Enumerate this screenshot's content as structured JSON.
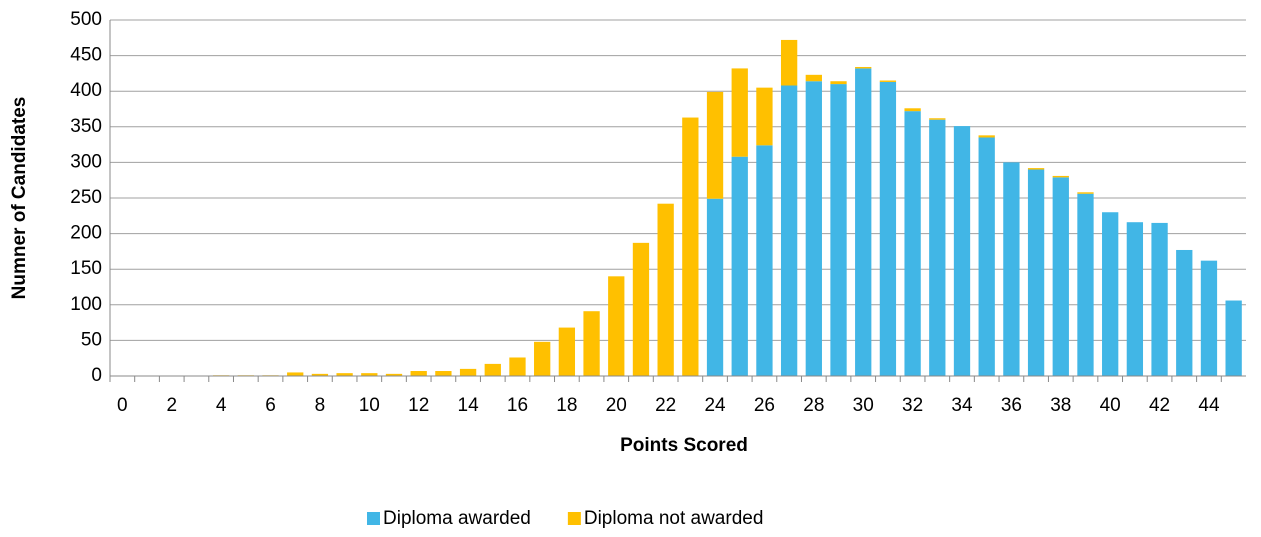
{
  "chart_data": {
    "type": "bar",
    "stacked": true,
    "x_label": "Points Scored",
    "y_label": "Numner  of Candidates",
    "categories": [
      0,
      null,
      2,
      null,
      4,
      null,
      6,
      null,
      8,
      null,
      10,
      null,
      12,
      null,
      14,
      null,
      16,
      null,
      18,
      null,
      20,
      null,
      22,
      null,
      24,
      null,
      26,
      null,
      28,
      null,
      30,
      null,
      32,
      null,
      34,
      null,
      36,
      null,
      38,
      null,
      40,
      null,
      42,
      null,
      44,
      null
    ],
    "series": [
      {
        "name": "Diploma awarded",
        "color": "#41b6e6",
        "values": [
          0,
          0,
          0,
          0,
          0,
          0,
          0,
          0,
          0,
          0,
          0,
          0,
          0,
          0,
          0,
          0,
          0,
          0,
          0,
          0,
          0,
          0,
          0,
          0,
          249,
          308,
          324,
          408,
          414,
          410,
          432,
          413,
          372,
          360,
          351,
          335,
          300,
          290,
          279,
          256,
          230,
          216,
          215,
          177,
          162,
          106
        ]
      },
      {
        "name": "Diploma not awarded",
        "color": "#ffc000",
        "values": [
          0,
          0,
          0,
          0,
          1,
          1,
          1,
          5,
          3,
          4,
          4,
          3,
          7,
          7,
          10,
          17,
          26,
          48,
          68,
          91,
          140,
          187,
          242,
          363,
          150,
          124,
          81,
          64,
          9,
          4,
          2,
          2,
          4,
          2,
          0,
          3,
          0,
          2,
          2,
          2,
          0,
          0,
          0,
          0,
          0,
          0
        ]
      }
    ],
    "ylim": [
      0,
      500
    ],
    "yticks": [
      0,
      50,
      100,
      150,
      200,
      250,
      300,
      350,
      400,
      450,
      500
    ],
    "grid": true,
    "legend": "bottom"
  }
}
